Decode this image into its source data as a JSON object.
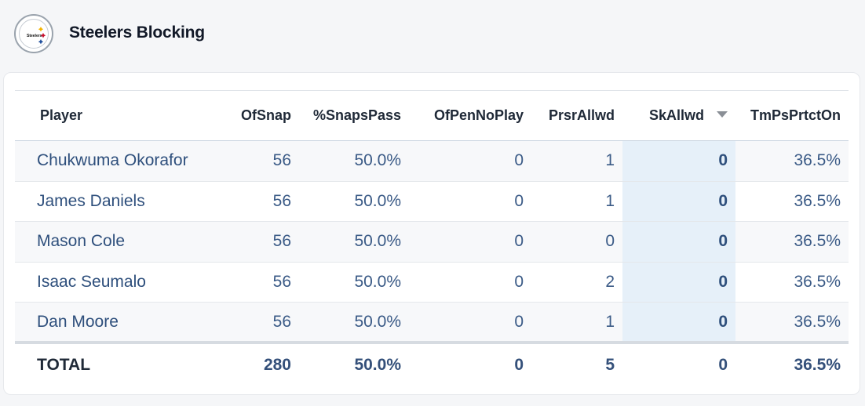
{
  "header": {
    "title": "Steelers Blocking",
    "logo_icon": "steelers-logo-icon"
  },
  "table": {
    "columns": [
      "Player",
      "OfSnap",
      "%SnapsPass",
      "OfPenNoPlay",
      "PrsrAllwd",
      "SkAllwd",
      "TmPsPrtctOn"
    ],
    "sorted_column": "SkAllwd",
    "sort_direction": "descending",
    "rows": [
      [
        "Chukwuma Okorafor",
        "56",
        "50.0%",
        "0",
        "1",
        "0",
        "36.5%"
      ],
      [
        "James Daniels",
        "56",
        "50.0%",
        "0",
        "1",
        "0",
        "36.5%"
      ],
      [
        "Mason Cole",
        "56",
        "50.0%",
        "0",
        "0",
        "0",
        "36.5%"
      ],
      [
        "Isaac Seumalo",
        "56",
        "50.0%",
        "0",
        "2",
        "0",
        "36.5%"
      ],
      [
        "Dan Moore",
        "56",
        "50.0%",
        "0",
        "1",
        "0",
        "36.5%"
      ]
    ],
    "total": [
      "TOTAL",
      "280",
      "50.0%",
      "0",
      "5",
      "0",
      "36.5%"
    ]
  },
  "colors": {
    "link": "#2e4f7c",
    "sorted_column_bg": "#e6f0f9",
    "logo_yellow": "#f4b400",
    "logo_red": "#c8102e",
    "logo_blue": "#1f4e9c"
  }
}
